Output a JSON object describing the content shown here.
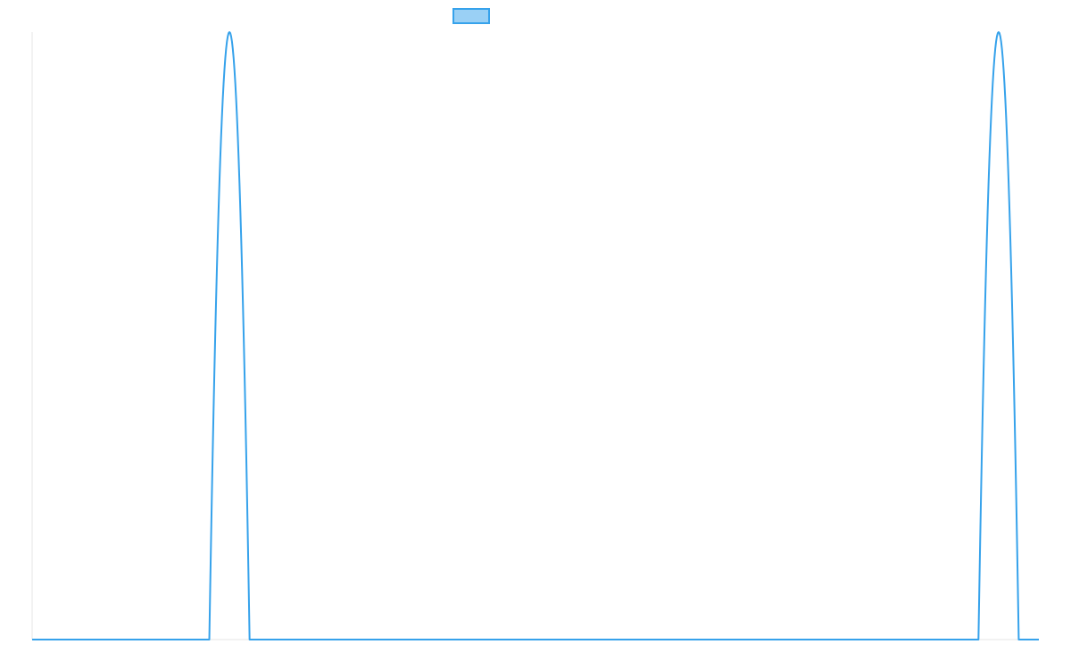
{
  "chart_data": {
    "type": "line",
    "title": "",
    "xlabel": "",
    "ylabel": "",
    "grid": false,
    "legend": {
      "position": "top-center",
      "entries": [
        {
          "label": "",
          "color": "#36a2eb",
          "fill": "#9ad0f5"
        }
      ]
    },
    "xlim": [
      0,
      100
    ],
    "ylim": [
      0,
      1
    ],
    "series": [
      {
        "color": "#36a2eb",
        "points": [
          [
            0,
            0
          ],
          [
            17.6,
            0
          ],
          [
            19.6,
            1
          ],
          [
            21.6,
            0
          ],
          [
            94.0,
            0
          ],
          [
            96.0,
            1
          ],
          [
            98.0,
            0
          ],
          [
            100,
            0
          ]
        ]
      }
    ]
  }
}
